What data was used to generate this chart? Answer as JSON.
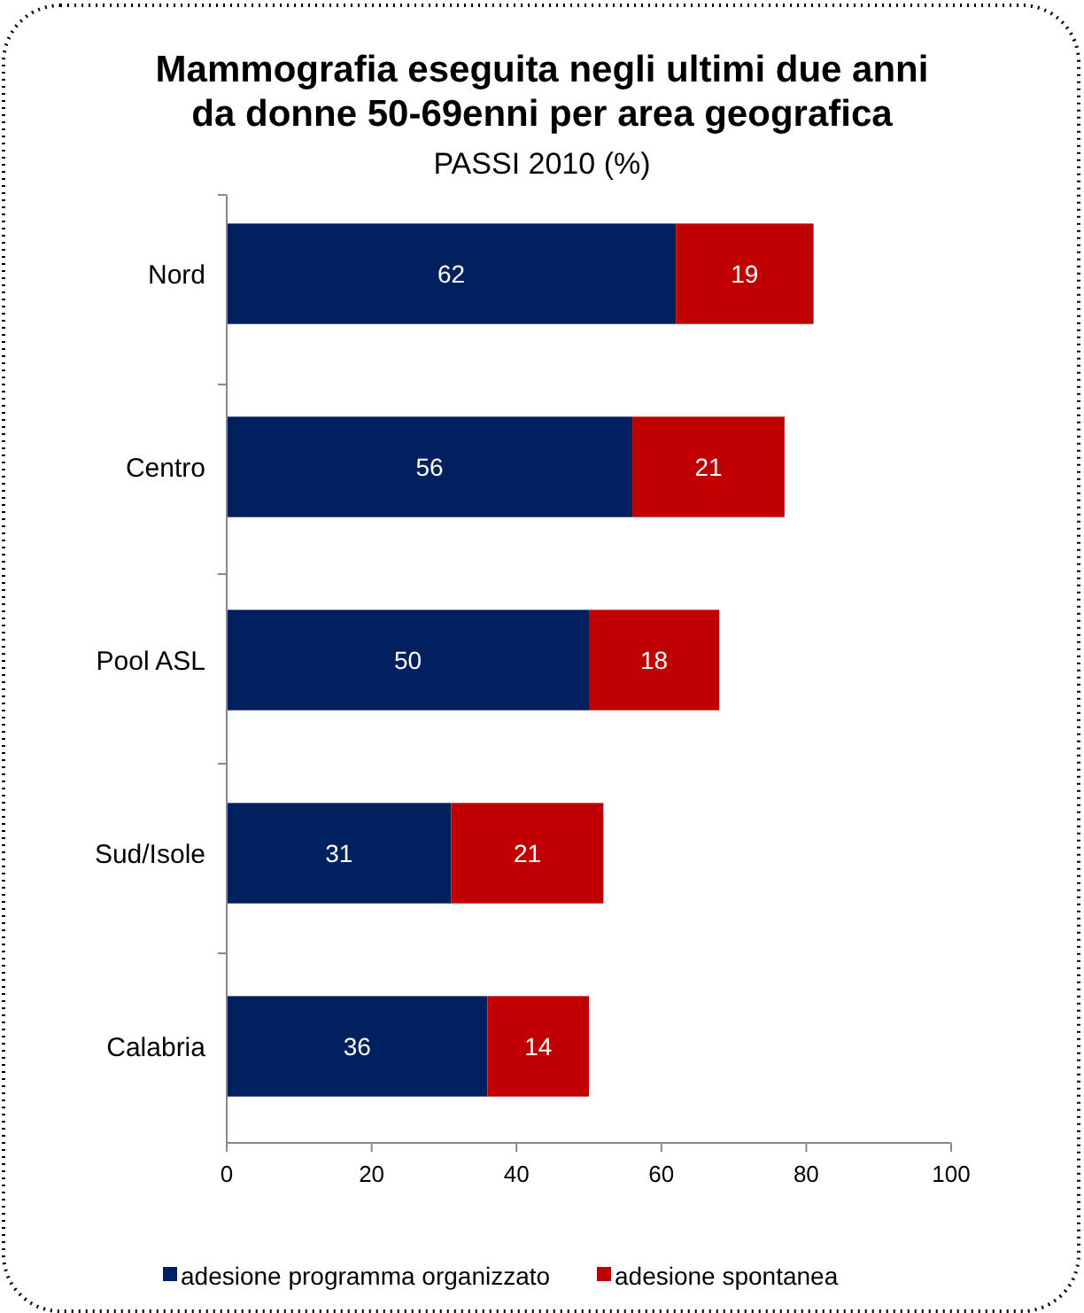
{
  "chart_data": {
    "type": "bar",
    "orientation": "horizontal",
    "stacked": true,
    "title": "Mammografia eseguita negli ultimi due anni da donne 50-69enni per area geografica",
    "subtitle": "PASSI 2010 (%)",
    "categories": [
      "Nord",
      "Centro",
      "Pool ASL",
      "Sud/Isole",
      "Calabria"
    ],
    "series": [
      {
        "name": "adesione programma organizzato",
        "color": "#002060",
        "values": [
          62,
          56,
          50,
          31,
          36
        ]
      },
      {
        "name": "adesione spontanea",
        "color": "#c00000",
        "values": [
          19,
          21,
          18,
          21,
          14
        ]
      }
    ],
    "xlim": [
      0,
      100
    ],
    "xticks": [
      0,
      20,
      40,
      60,
      80,
      100
    ],
    "data_labels": true,
    "legend": "bottom",
    "grid": false
  }
}
